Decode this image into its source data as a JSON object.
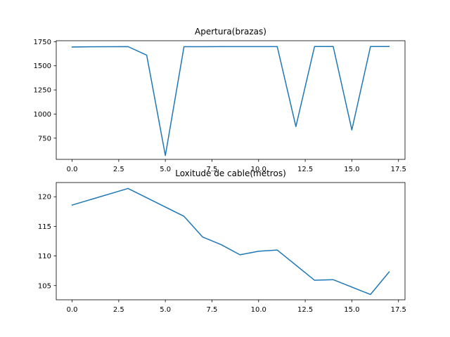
{
  "chart_data": [
    {
      "type": "line",
      "title": "Apertura(brazas)",
      "xlim": [
        -0.85,
        17.85
      ],
      "ylim": [
        530,
        1760
      ],
      "x_ticks": [
        0,
        2.5,
        5,
        7.5,
        10,
        12.5,
        15,
        17.5
      ],
      "x_tick_labels": [
        "0.0",
        "2.5",
        "5.0",
        "7.5",
        "10.0",
        "12.5",
        "15.0",
        "17.5"
      ],
      "y_ticks": [
        750,
        1000,
        1250,
        1500,
        1750
      ],
      "y_tick_labels": [
        "750",
        "1000",
        "1250",
        "1500",
        "1750"
      ],
      "grid": false,
      "color": "#1f77b4",
      "series": [
        {
          "x": [
            0,
            1,
            2,
            3,
            4,
            5,
            6,
            7,
            8,
            9,
            10,
            11,
            12,
            13,
            14,
            15,
            16,
            17
          ],
          "values": [
            1695,
            1697,
            1698,
            1699,
            1610,
            570,
            1698,
            1698,
            1699,
            1699,
            1699,
            1699,
            870,
            1700,
            1700,
            835,
            1700,
            1700
          ]
        }
      ]
    },
    {
      "type": "line",
      "title": "Loxitude de cable(metros)",
      "xlim": [
        -0.85,
        17.85
      ],
      "ylim": [
        102.6,
        122.4
      ],
      "x_ticks": [
        0,
        2.5,
        5,
        7.5,
        10,
        12.5,
        15,
        17.5
      ],
      "x_tick_labels": [
        "0.0",
        "2.5",
        "5.0",
        "7.5",
        "10.0",
        "12.5",
        "15.0",
        "17.5"
      ],
      "y_ticks": [
        105,
        110,
        115,
        120
      ],
      "y_tick_labels": [
        "105",
        "110",
        "115",
        "120"
      ],
      "grid": false,
      "color": "#1f77b4",
      "series": [
        {
          "x": [
            0,
            3,
            6,
            7,
            8,
            9,
            10,
            11,
            13,
            14,
            16,
            17
          ],
          "values": [
            118.6,
            121.4,
            116.7,
            113.2,
            111.9,
            110.2,
            110.8,
            111.0,
            105.9,
            106.0,
            103.5,
            107.3
          ]
        }
      ]
    }
  ]
}
